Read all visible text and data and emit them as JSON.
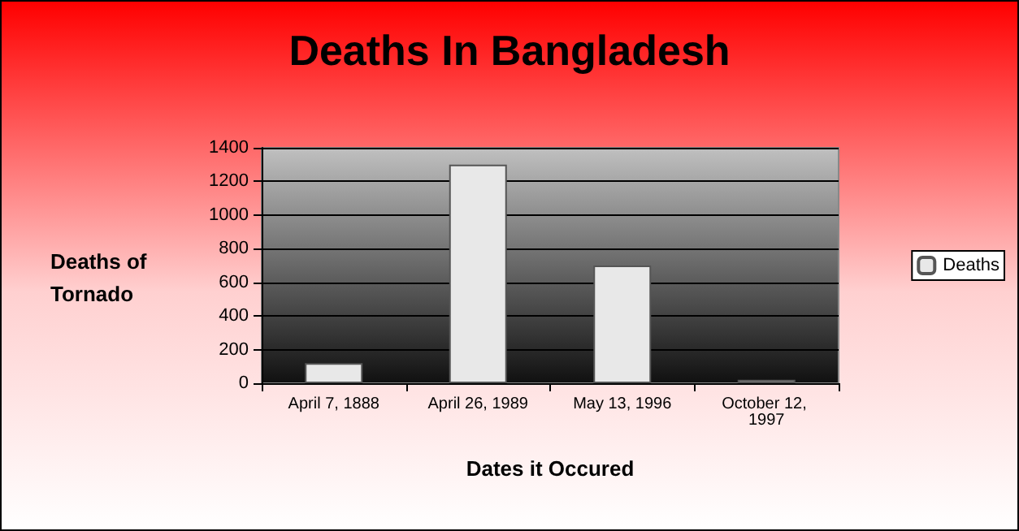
{
  "chart_data": {
    "type": "bar",
    "title": "Deaths In Bangladesh",
    "xlabel": "Dates it Occured",
    "ylabel": "Deaths of Tornado",
    "categories": [
      "April 7, 1888",
      "April 26, 1989",
      "May 13, 1996",
      "October 12, 1997"
    ],
    "series": [
      {
        "name": "Deaths",
        "color": "#e8e8e8",
        "values": [
          120,
          1300,
          700,
          20
        ]
      }
    ],
    "ylim": [
      0,
      1400
    ],
    "yticks": [
      0,
      200,
      400,
      600,
      800,
      1000,
      1200,
      1400
    ],
    "grid": "y",
    "legend": "right"
  }
}
